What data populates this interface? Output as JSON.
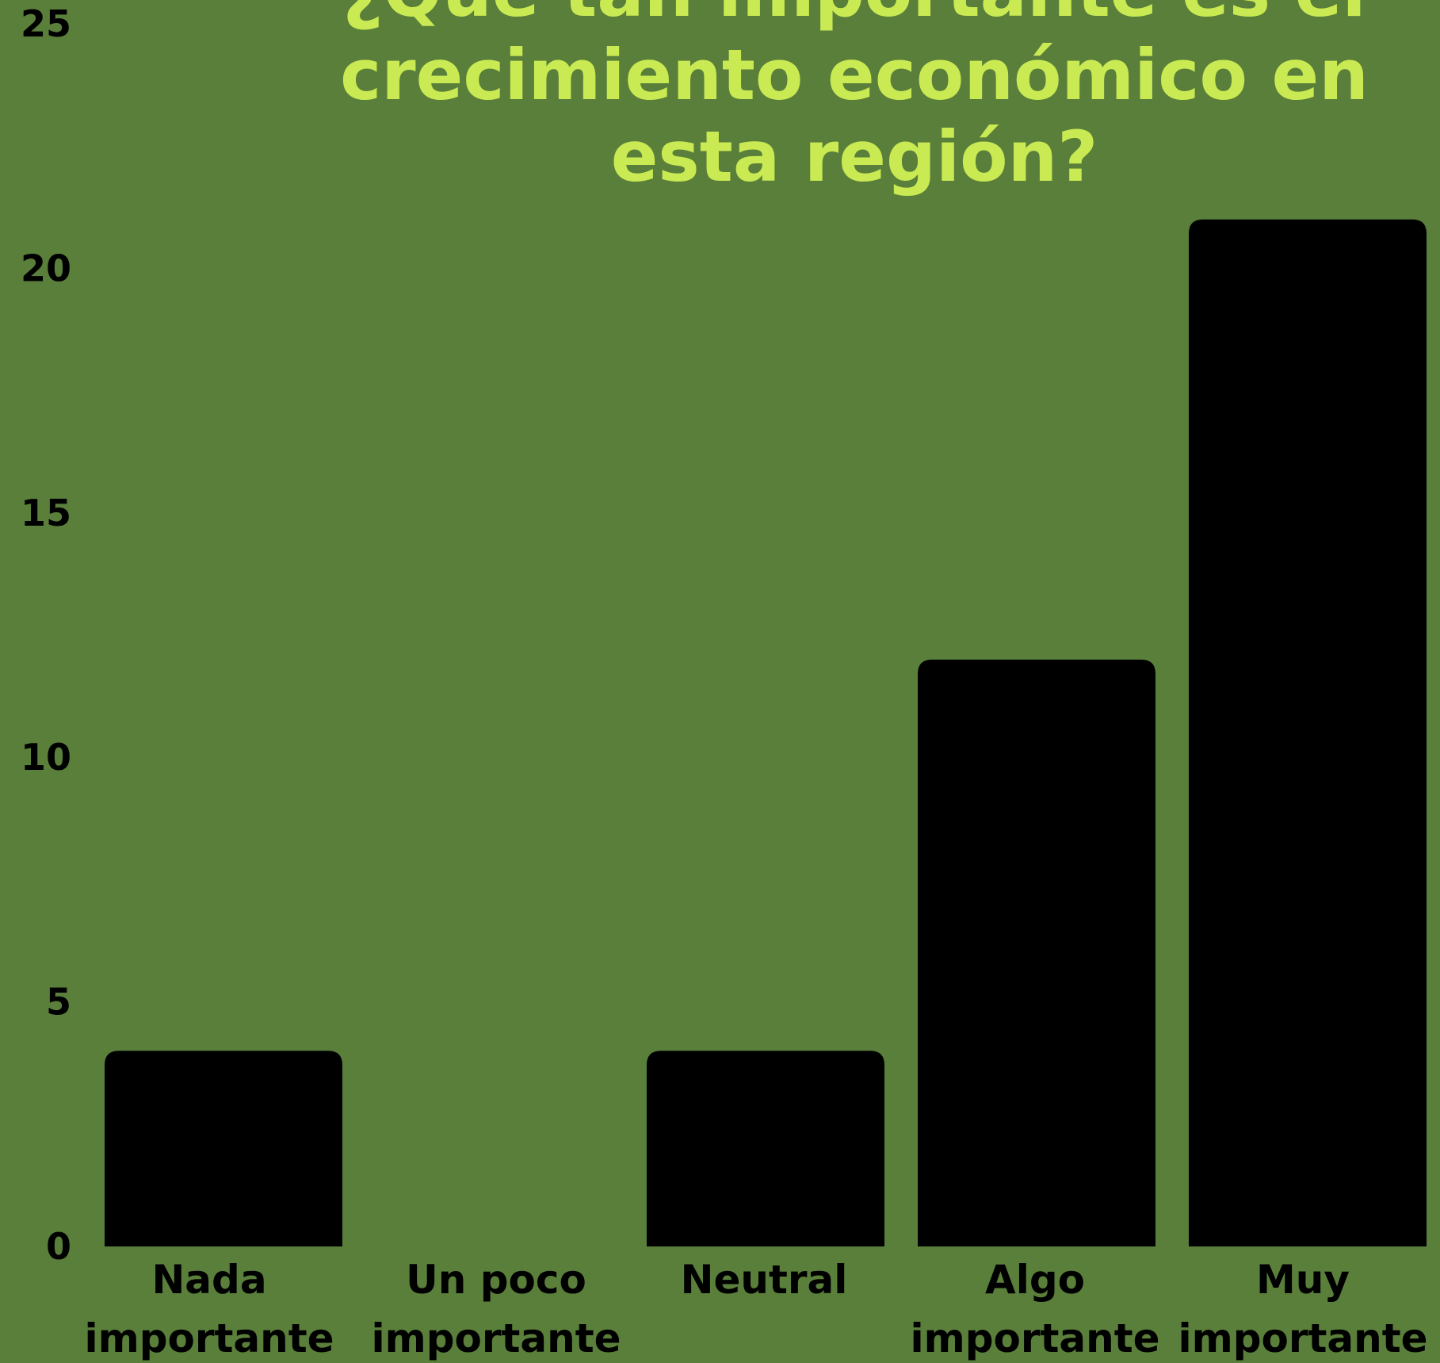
{
  "colors": {
    "background": "#5a7f3b",
    "title": "#c9ea52",
    "bar": "#000000",
    "text": "#000000"
  },
  "chart_data": {
    "type": "bar",
    "title_lines": [
      "¿Qué tan importante es el",
      "crecimiento económico en",
      "esta región?"
    ],
    "categories": [
      [
        "Nada",
        "importante"
      ],
      [
        "Un poco",
        "importante"
      ],
      [
        "Neutral"
      ],
      [
        "Algo",
        "importante"
      ],
      [
        "Muy",
        "importante"
      ]
    ],
    "values": [
      4,
      0,
      4,
      12,
      21
    ],
    "yticks": [
      "0",
      "5",
      "10",
      "15",
      "20",
      "25"
    ],
    "ylim": [
      0,
      25
    ],
    "grid": false,
    "legend": "none"
  }
}
